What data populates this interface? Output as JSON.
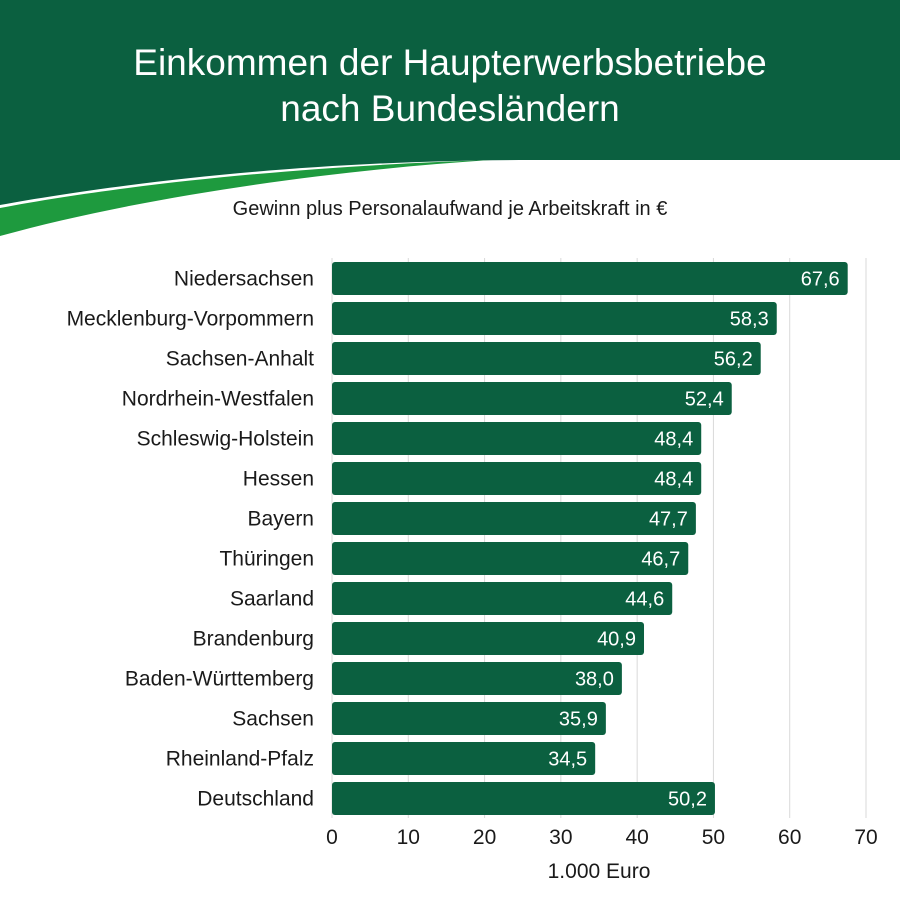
{
  "header": {
    "title_line1": "Einkommen der Haupterwerbsbetriebe",
    "title_line2": "nach Bundesländern",
    "subtitle": "Gewinn plus Personalaufwand je Arbeitskraft in €",
    "colors": {
      "dark_green": "#0b6040",
      "bright_green": "#1e9a3e"
    }
  },
  "chart_data": {
    "type": "bar",
    "orientation": "horizontal",
    "title": "Einkommen der Haupterwerbsbetriebe nach Bundesländern",
    "subtitle": "Gewinn plus Personalaufwand je Arbeitskraft in €",
    "categories": [
      "Niedersachsen",
      "Mecklenburg-Vorpommern",
      "Sachsen-Anhalt",
      "Nordrhein-Westfalen",
      "Schleswig-Holstein",
      "Hessen",
      "Bayern",
      "Thüringen",
      "Saarland",
      "Brandenburg",
      "Baden-Württemberg",
      "Sachsen",
      "Rheinland-Pfalz",
      "Deutschland"
    ],
    "values": [
      67.6,
      58.3,
      56.2,
      52.4,
      48.4,
      48.4,
      47.7,
      46.7,
      44.6,
      40.9,
      38.0,
      35.9,
      34.5,
      50.2
    ],
    "value_labels": [
      "67,6",
      "58,3",
      "56,2",
      "52,4",
      "48,4",
      "48,4",
      "47,7",
      "46,7",
      "44,6",
      "40,9",
      "38,0",
      "35,9",
      "34,5",
      "50,2"
    ],
    "xlim": [
      0,
      70
    ],
    "xticks": [
      0,
      10,
      20,
      30,
      40,
      50,
      60,
      70
    ],
    "xlabel": "1.000 Euro",
    "ylabel": "",
    "grid": "vertical",
    "bar_color": "#0b6040"
  }
}
